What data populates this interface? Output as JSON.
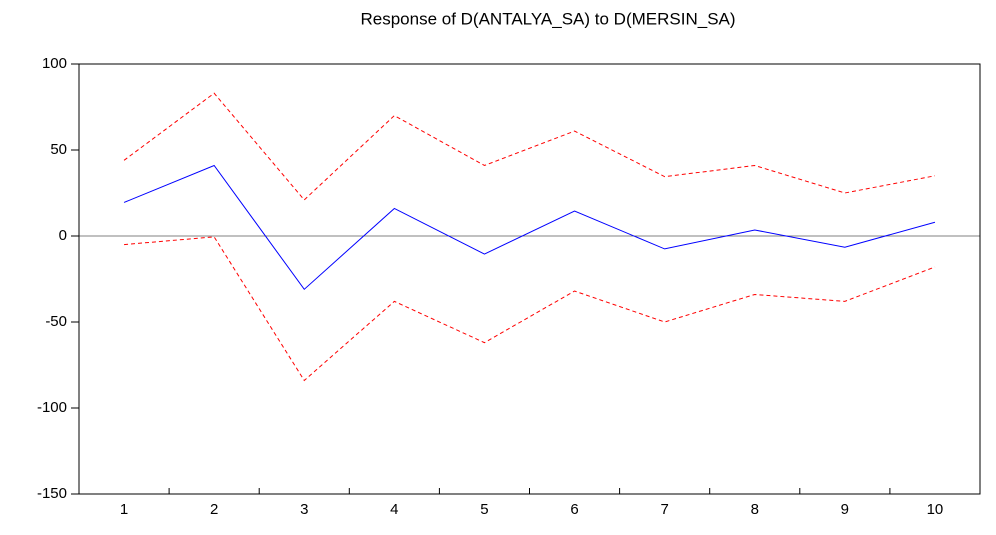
{
  "chart_data": {
    "type": "line",
    "title": "Response of D(ANTALYA_SA) to D(MERSIN_SA)",
    "categories": [
      "1",
      "2",
      "3",
      "4",
      "5",
      "6",
      "7",
      "8",
      "9",
      "10"
    ],
    "series": [
      {
        "color": "#0000ff",
        "dashed": false,
        "values": [
          19.5,
          41,
          -31,
          16,
          -10.5,
          14.5,
          -7.5,
          3.5,
          -6.5,
          8
        ]
      },
      {
        "color": "#ff0000",
        "dashed": true,
        "values": [
          44,
          83,
          21,
          70,
          41,
          61,
          34.5,
          41,
          25,
          35
        ]
      },
      {
        "color": "#ff0000",
        "dashed": true,
        "values": [
          -5,
          -0.5,
          -84,
          -38,
          -62,
          -32,
          -50,
          -34,
          -38,
          -18
        ]
      }
    ],
    "ylim": [
      -150,
      100
    ],
    "yticks": [
      -150,
      -100,
      -50,
      0,
      50,
      100
    ],
    "zero_line": true
  }
}
